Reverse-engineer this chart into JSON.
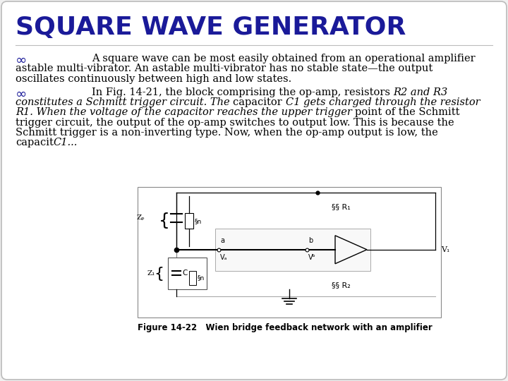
{
  "title": "SQUARE WAVE GENERATOR",
  "title_color": "#1a1a99",
  "title_fontsize": 26,
  "bg_color": "#f0f0f0",
  "border_color": "#bbbbbb",
  "bullet_color": "#1a1a99",
  "bullet_char": "∞",
  "bullet_fontsize": 14,
  "para1_text_line1": "A square wave can be most easily obtained from an operational amplifier",
  "para1_text_line2": "astable multi-vibrator. An astable multi-vibrator has no stable state—the output",
  "para1_text_line3": "oscillates continuously between high and low states.",
  "para2_lines": [
    [
      [
        "n",
        "In Fig. 14-21, the block comprising the op-amp, resistors "
      ],
      [
        "i",
        "R2 and R3"
      ]
    ],
    [
      [
        "i",
        "constitutes a Schmitt trigger circuit. The "
      ],
      [
        "n",
        "capacitor "
      ],
      [
        "i",
        "C1 gets charged through the resistor"
      ]
    ],
    [
      [
        "i",
        "R1. When the voltage of the capacitor reaches the upper trigger "
      ],
      [
        "n",
        "point of the Schmitt"
      ]
    ],
    [
      [
        "n",
        "trigger circuit, the output of the op-amp switches to output low. This is because the"
      ]
    ],
    [
      [
        "n",
        "Schmitt trigger is a non-inverting type. Now, when the op-amp output is low, the"
      ]
    ],
    [
      [
        "n",
        "capacit"
      ],
      [
        "i",
        "C1..."
      ]
    ]
  ],
  "text_fontsize": 10.5,
  "figure_caption": "Figure 14-22   Wien bridge feedback network with an amplifier",
  "figure_caption_fontsize": 8.5,
  "white_bg": "#ffffff"
}
